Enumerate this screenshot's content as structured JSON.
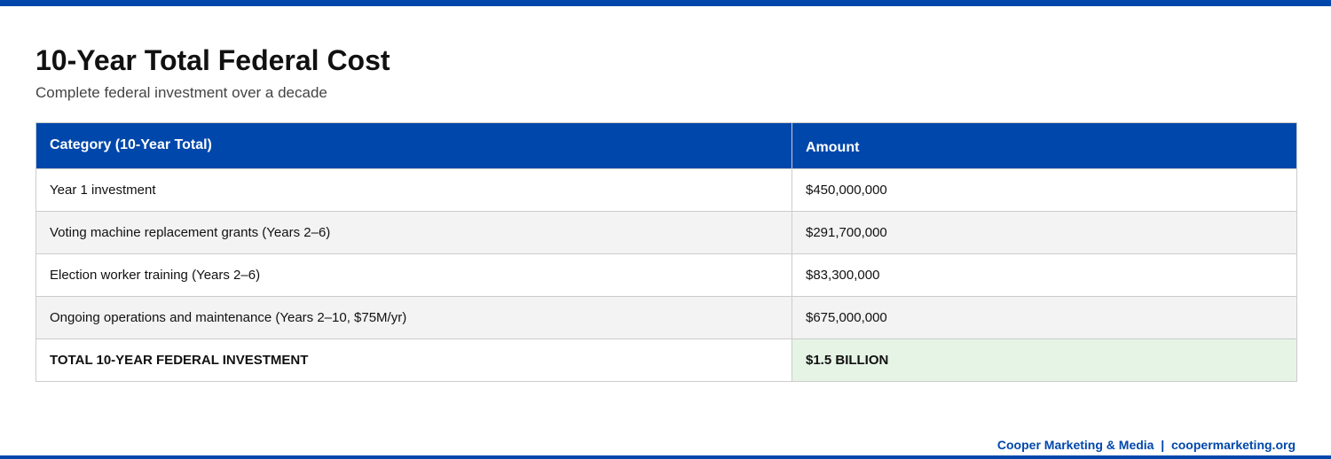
{
  "header": {
    "title": "10-Year Total Federal Cost",
    "subtitle": "Complete federal investment over a decade"
  },
  "table": {
    "columns": [
      "Category (10-Year Total)",
      "Amount"
    ],
    "rows": [
      {
        "category": "Year 1 investment",
        "amount": "$450,000,000"
      },
      {
        "category": "Voting machine replacement grants (Years 2–6)",
        "amount": "$291,700,000"
      },
      {
        "category": "Election worker training (Years 2–6)",
        "amount": "$83,300,000"
      },
      {
        "category": "Ongoing operations and maintenance (Years 2–10, $75M/yr)",
        "amount": "$675,000,000"
      }
    ],
    "total": {
      "category": "TOTAL 10-YEAR FEDERAL INVESTMENT",
      "amount": "$1.5 BILLION"
    }
  },
  "footer": {
    "company": "Cooper Marketing & Media",
    "separator": "|",
    "website": "coopermarketing.org"
  },
  "colors": {
    "accent": "#0047ab",
    "alt_row": "#f3f3f3",
    "total_highlight": "#e6f4e6"
  }
}
